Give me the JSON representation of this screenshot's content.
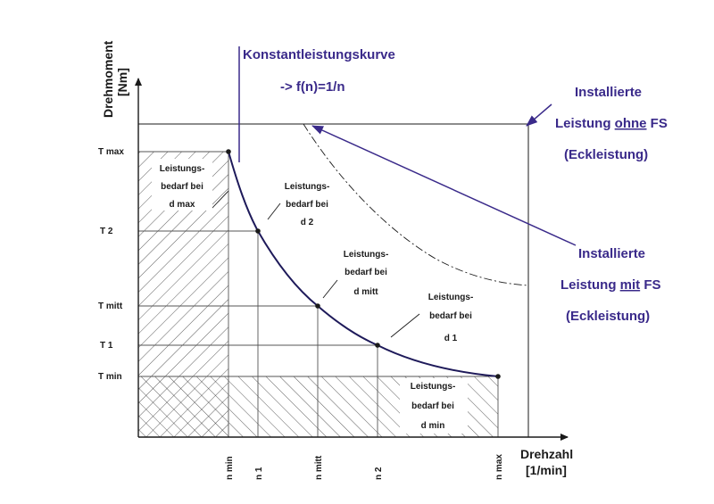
{
  "axes": {
    "y_title": "Drehmoment",
    "y_unit": "[Nm]",
    "x_title": "Drehzahl",
    "x_unit": "[1/min]",
    "y_ticks": [
      "T max",
      "T 2",
      "T mitt",
      "T 1",
      "T min"
    ],
    "x_ticks": [
      "n min",
      "n 1",
      "n mitt",
      "n 2",
      "n max"
    ]
  },
  "curve_label": {
    "title": "Konstantleistungskurve",
    "formula": "-> f(n)=1/n"
  },
  "installed_without_fs": {
    "line1": "Installierte",
    "line2_pre": "Leistung ",
    "line2_emph": "ohne",
    "line2_post": " FS",
    "line3": "(Eckleistung)"
  },
  "installed_with_fs": {
    "line1": "Installierte",
    "line2_pre": "Leistung ",
    "line2_emph": "mit",
    "line2_post": " FS",
    "line3": "(Eckleistung)"
  },
  "demand_labels": [
    {
      "l1": "Leistungs-",
      "l2": "bedarf bei",
      "l3": "d max"
    },
    {
      "l1": "Leistungs-",
      "l2": "bedarf bei",
      "l3": "d 2"
    },
    {
      "l1": "Leistungs-",
      "l2": "bedarf bei",
      "l3": "d mitt"
    },
    {
      "l1": "Leistungs-",
      "l2": "bedarf bei",
      "l3": "d 1"
    },
    {
      "l1": "Leistungs-",
      "l2": "bedarf bei",
      "l3": "d min"
    }
  ],
  "colors": {
    "line": "#1a1a1a",
    "accent": "#3a2a8a",
    "grid": "#555555"
  }
}
